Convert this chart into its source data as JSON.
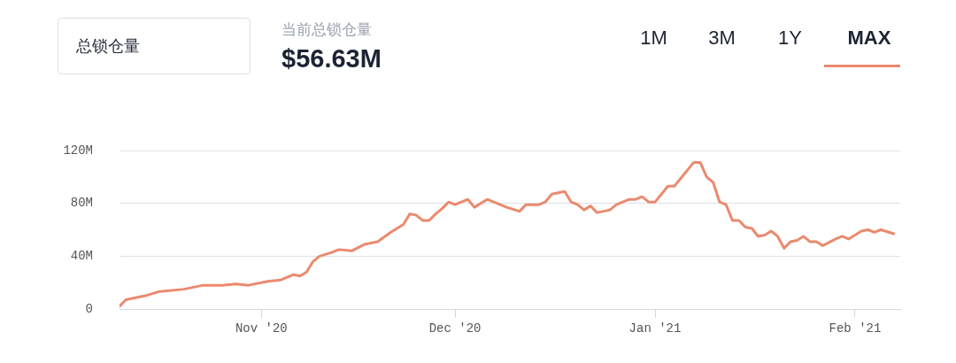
{
  "chart_data": {
    "type": "line",
    "title": "总锁仓量",
    "subtitle": "当前总锁仓量",
    "annotations": [
      "$56.63M",
      "1M",
      "3M",
      "1Y",
      "MAX"
    ],
    "x": [
      "2020-10-10",
      "2020-10-11",
      "2020-10-14",
      "2020-10-16",
      "2020-10-20",
      "2020-10-23",
      "2020-10-26",
      "2020-10-28",
      "2020-10-30",
      "2020-11-02",
      "2020-11-04",
      "2020-11-06",
      "2020-11-07",
      "2020-11-08",
      "2020-11-09",
      "2020-11-10",
      "2020-11-12",
      "2020-11-13",
      "2020-11-15",
      "2020-11-17",
      "2020-11-19",
      "2020-11-21",
      "2020-11-23",
      "2020-11-24",
      "2020-11-25",
      "2020-11-26",
      "2020-11-27",
      "2020-11-28",
      "2020-11-29",
      "2020-11-30",
      "2020-12-01",
      "2020-12-03",
      "2020-12-04",
      "2020-12-06",
      "2020-12-07",
      "2020-12-09",
      "2020-12-11",
      "2020-12-12",
      "2020-12-14",
      "2020-12-15",
      "2020-12-16",
      "2020-12-18",
      "2020-12-19",
      "2020-12-20",
      "2020-12-21",
      "2020-12-22",
      "2020-12-23",
      "2020-12-25",
      "2020-12-26",
      "2020-12-28",
      "2020-12-29",
      "2020-12-30",
      "2020-12-31",
      "2021-01-01",
      "2021-01-03",
      "2021-01-04",
      "2021-01-07",
      "2021-01-08",
      "2021-01-09",
      "2021-01-10",
      "2021-01-11",
      "2021-01-12",
      "2021-01-13",
      "2021-01-14",
      "2021-01-15",
      "2021-01-16",
      "2021-01-17",
      "2021-01-18",
      "2021-01-19",
      "2021-01-20",
      "2021-01-21",
      "2021-01-22",
      "2021-01-23",
      "2021-01-24",
      "2021-01-25",
      "2021-01-26",
      "2021-01-27",
      "2021-01-29",
      "2021-01-30",
      "2021-01-31",
      "2021-02-02",
      "2021-02-03",
      "2021-02-04",
      "2021-02-05",
      "2021-02-07"
    ],
    "series": [
      {
        "color": "#ea8a6e",
        "values": [
          2,
          7,
          10,
          13,
          15,
          18,
          18,
          19,
          18,
          21,
          22,
          26,
          25,
          28,
          36,
          40,
          43,
          45,
          44,
          49,
          51,
          58,
          64,
          72,
          71,
          67,
          67,
          72,
          76,
          81,
          79,
          83,
          77,
          83,
          81,
          77,
          74,
          79,
          79,
          81,
          87,
          89,
          81,
          79,
          75,
          78,
          73,
          75,
          79,
          83,
          83,
          85,
          81,
          81,
          93,
          93,
          111,
          111,
          100,
          96,
          81,
          79,
          67,
          67,
          62,
          61,
          55,
          56,
          59,
          55,
          46,
          51,
          52,
          55,
          51,
          51,
          48,
          53,
          55,
          53,
          59,
          60,
          58,
          60,
          57
        ]
      }
    ],
    "xlim": [
      "2020-10-10",
      "2021-02-08"
    ],
    "xticks": [
      {
        "value": "2020-11-01",
        "label": "Nov '20"
      },
      {
        "value": "2020-12-01",
        "label": "Dec '20"
      },
      {
        "value": "2021-01-01",
        "label": "Jan '21"
      },
      {
        "value": "2021-02-01",
        "label": "Feb '21"
      }
    ],
    "ylim": [
      0,
      120
    ],
    "yticks": [
      {
        "value": 0,
        "label": "0"
      },
      {
        "value": 40,
        "label": "40M"
      },
      {
        "value": 80,
        "label": "80M"
      },
      {
        "value": 120,
        "label": "120M"
      }
    ],
    "grid": "y",
    "legend": false,
    "marker": "none",
    "line_style": "solid"
  }
}
